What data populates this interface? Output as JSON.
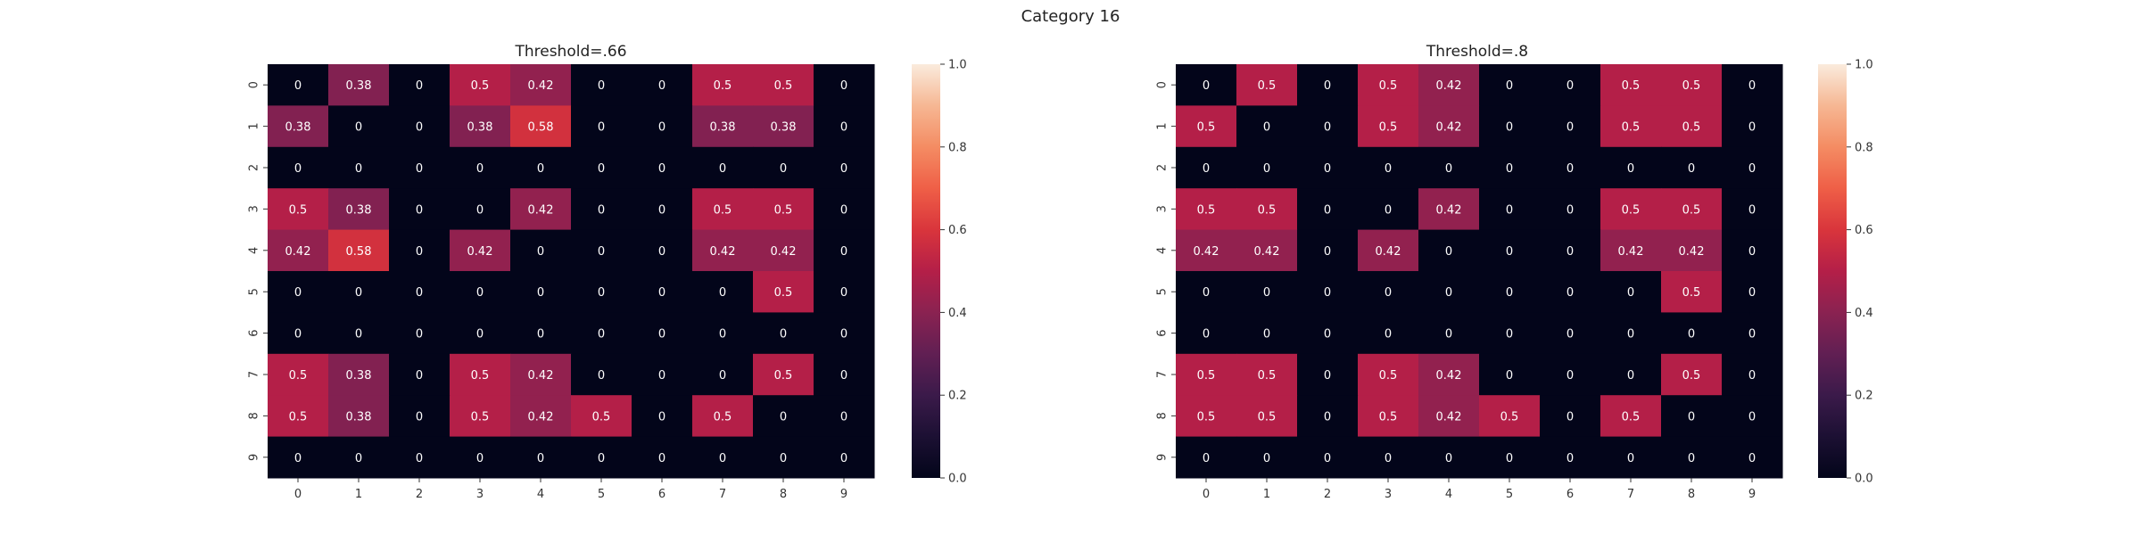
{
  "figure_title": "Category 16",
  "chart_data": [
    {
      "type": "heatmap",
      "title": "Threshold=.66",
      "x_labels": [
        "0",
        "1",
        "2",
        "3",
        "4",
        "5",
        "6",
        "7",
        "8",
        "9"
      ],
      "y_labels": [
        "0",
        "1",
        "2",
        "3",
        "4",
        "5",
        "6",
        "7",
        "8",
        "9"
      ],
      "vmin": 0.0,
      "vmax": 1.0,
      "colorbar_ticks": [
        "0.0",
        "0.2",
        "0.4",
        "0.6",
        "0.8",
        "1.0"
      ],
      "colormap": "rocket",
      "values": [
        [
          0,
          0.38,
          0,
          0.5,
          0.42,
          0,
          0,
          0.5,
          0.5,
          0
        ],
        [
          0.38,
          0,
          0,
          0.38,
          0.58,
          0,
          0,
          0.38,
          0.38,
          0
        ],
        [
          0,
          0,
          0,
          0,
          0,
          0,
          0,
          0,
          0,
          0
        ],
        [
          0.5,
          0.38,
          0,
          0,
          0.42,
          0,
          0,
          0.5,
          0.5,
          0
        ],
        [
          0.42,
          0.58,
          0,
          0.42,
          0,
          0,
          0,
          0.42,
          0.42,
          0
        ],
        [
          0,
          0,
          0,
          0,
          0,
          0,
          0,
          0,
          0.5,
          0
        ],
        [
          0,
          0,
          0,
          0,
          0,
          0,
          0,
          0,
          0,
          0
        ],
        [
          0.5,
          0.38,
          0,
          0.5,
          0.42,
          0,
          0,
          0,
          0.5,
          0
        ],
        [
          0.5,
          0.38,
          0,
          0.5,
          0.42,
          0.5,
          0,
          0.5,
          0,
          0
        ],
        [
          0,
          0,
          0,
          0,
          0,
          0,
          0,
          0,
          0,
          0
        ]
      ]
    },
    {
      "type": "heatmap",
      "title": "Threshold=.8",
      "x_labels": [
        "0",
        "1",
        "2",
        "3",
        "4",
        "5",
        "6",
        "7",
        "8",
        "9"
      ],
      "y_labels": [
        "0",
        "1",
        "2",
        "3",
        "4",
        "5",
        "6",
        "7",
        "8",
        "9"
      ],
      "vmin": 0.0,
      "vmax": 1.0,
      "colorbar_ticks": [
        "0.0",
        "0.2",
        "0.4",
        "0.6",
        "0.8",
        "1.0"
      ],
      "colormap": "rocket",
      "values": [
        [
          0,
          0.5,
          0,
          0.5,
          0.42,
          0,
          0,
          0.5,
          0.5,
          0
        ],
        [
          0.5,
          0,
          0,
          0.5,
          0.42,
          0,
          0,
          0.5,
          0.5,
          0
        ],
        [
          0,
          0,
          0,
          0,
          0,
          0,
          0,
          0,
          0,
          0
        ],
        [
          0.5,
          0.5,
          0,
          0,
          0.42,
          0,
          0,
          0.5,
          0.5,
          0
        ],
        [
          0.42,
          0.42,
          0,
          0.42,
          0,
          0,
          0,
          0.42,
          0.42,
          0
        ],
        [
          0,
          0,
          0,
          0,
          0,
          0,
          0,
          0,
          0.5,
          0
        ],
        [
          0,
          0,
          0,
          0,
          0,
          0,
          0,
          0,
          0,
          0
        ],
        [
          0.5,
          0.5,
          0,
          0.5,
          0.42,
          0,
          0,
          0,
          0.5,
          0
        ],
        [
          0.5,
          0.5,
          0,
          0.5,
          0.42,
          0.5,
          0,
          0.5,
          0,
          0
        ],
        [
          0,
          0,
          0,
          0,
          0,
          0,
          0,
          0,
          0,
          0
        ]
      ]
    }
  ]
}
